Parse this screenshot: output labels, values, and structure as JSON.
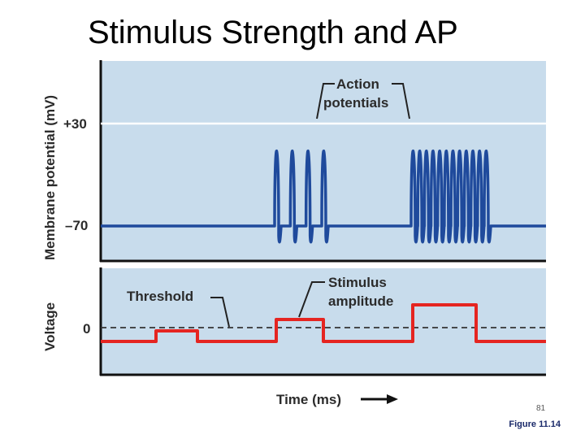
{
  "slide_title": "Stimulus Strength and AP",
  "footnote": "Figure 11.14",
  "slide_number": "81",
  "colors": {
    "panel_bg": "#c8dcec",
    "trace_blue": "#1f4a9c",
    "trace_red": "#e52521",
    "dashed_line": "#333333",
    "frame": "#111111"
  },
  "top_panel": {
    "ylabel": "Membrane potential (mV)",
    "tick_high": "+30",
    "tick_low": "–70",
    "callout": [
      "Action",
      "potentials"
    ]
  },
  "bottom_panel": {
    "ylabel": "Voltage",
    "tick_zero": "0",
    "threshold_label": "Threshold",
    "callout": [
      "Stimulus",
      "amplitude"
    ]
  },
  "xlabel": "Time (ms)",
  "stimulus_levels": [
    "low",
    "medium",
    "high"
  ],
  "spike_counts": [
    0,
    4,
    12
  ]
}
